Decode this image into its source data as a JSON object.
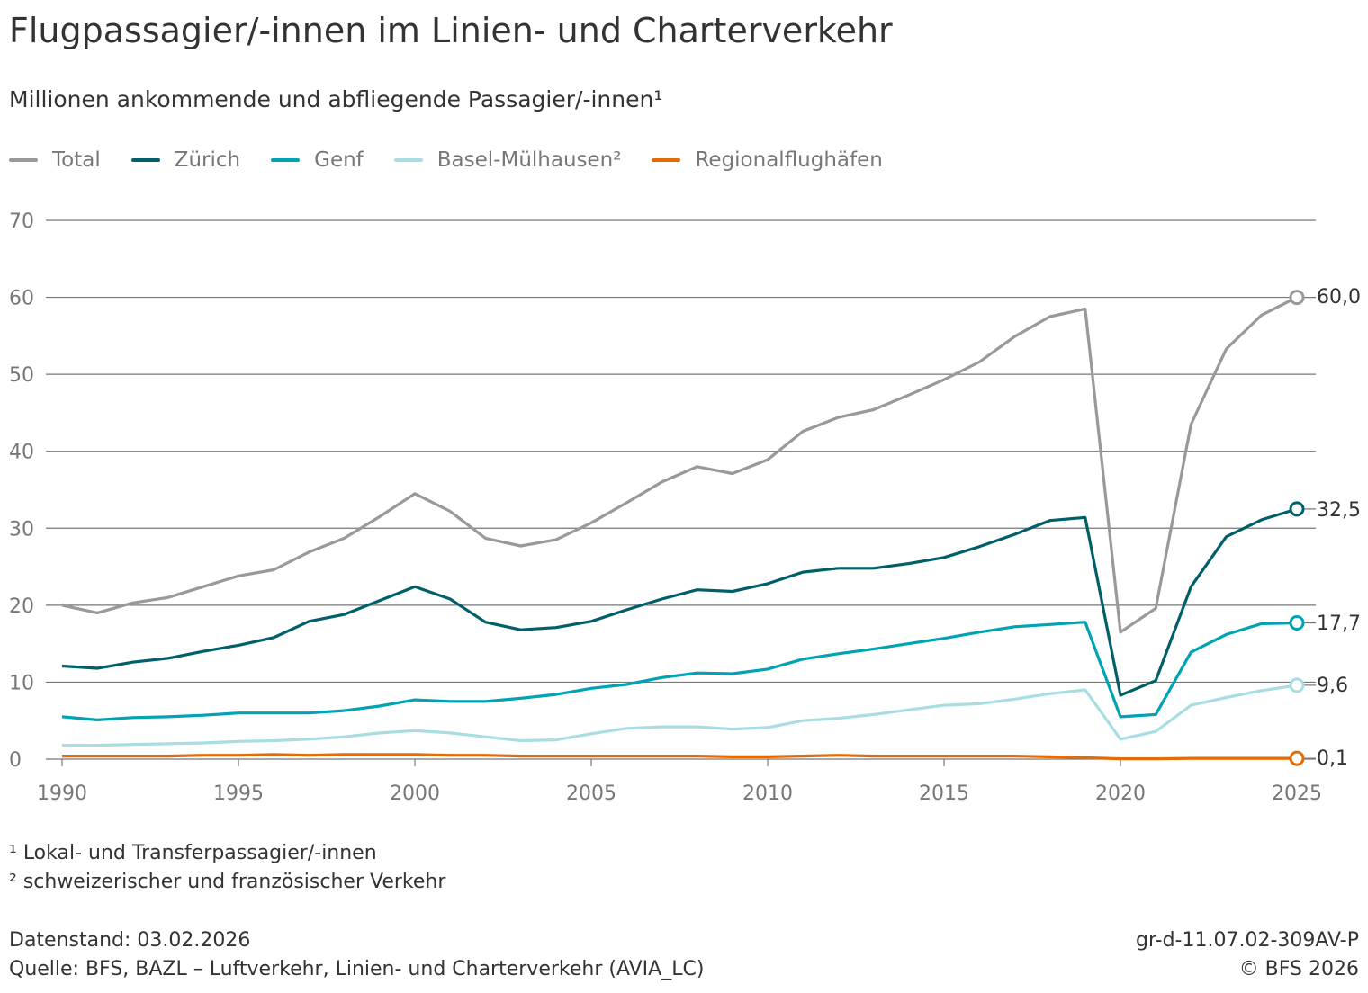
{
  "chart_data": {
    "type": "line",
    "title": "Flugpassagier/-innen im Linien- und Charterverkehr",
    "subtitle": "Millionen ankommende und abfliegende Passagier/-innen¹",
    "ylim": [
      0,
      70
    ],
    "yticks": [
      "0",
      "10",
      "20",
      "30",
      "40",
      "50",
      "60",
      "70"
    ],
    "xticks": [
      "1990",
      "1995",
      "2000",
      "2005",
      "2010",
      "2015",
      "2020",
      "2025"
    ],
    "grid": true,
    "legend_position": "top-left",
    "x": [
      1990,
      1991,
      1992,
      1993,
      1994,
      1995,
      1996,
      1997,
      1998,
      1999,
      2000,
      2001,
      2002,
      2003,
      2004,
      2005,
      2006,
      2007,
      2008,
      2009,
      2010,
      2011,
      2012,
      2013,
      2014,
      2015,
      2016,
      2017,
      2018,
      2019,
      2020,
      2021,
      2022,
      2023,
      2024,
      2025
    ],
    "series": [
      {
        "name": "Total",
        "color": "#999999",
        "end_label": "60,0",
        "values": [
          20.0,
          19.0,
          20.3,
          21.0,
          22.4,
          23.8,
          24.6,
          26.9,
          28.7,
          31.5,
          34.5,
          32.2,
          28.7,
          27.7,
          28.5,
          30.7,
          33.3,
          36.0,
          38.0,
          37.1,
          38.9,
          42.6,
          44.4,
          45.4,
          47.3,
          49.3,
          51.6,
          54.9,
          57.5,
          58.5,
          16.5,
          19.6,
          43.5,
          53.3,
          57.7,
          60.0
        ]
      },
      {
        "name": "Zürich",
        "color": "#005f69",
        "end_label": "32,5",
        "values": [
          12.1,
          11.8,
          12.6,
          13.1,
          14.0,
          14.8,
          15.8,
          17.9,
          18.8,
          20.6,
          22.4,
          20.8,
          17.8,
          16.8,
          17.1,
          17.9,
          19.4,
          20.8,
          22.0,
          21.8,
          22.8,
          24.3,
          24.8,
          24.8,
          25.4,
          26.2,
          27.6,
          29.2,
          31.0,
          31.4,
          8.3,
          10.2,
          22.4,
          28.9,
          31.1,
          32.5
        ]
      },
      {
        "name": "Genf",
        "color": "#00a3b4",
        "end_label": "17,7",
        "values": [
          5.5,
          5.1,
          5.4,
          5.5,
          5.7,
          6.0,
          6.0,
          6.0,
          6.3,
          6.9,
          7.7,
          7.5,
          7.5,
          7.9,
          8.4,
          9.2,
          9.7,
          10.6,
          11.2,
          11.1,
          11.7,
          13.0,
          13.7,
          14.3,
          15.0,
          15.7,
          16.5,
          17.2,
          17.5,
          17.8,
          5.5,
          5.8,
          13.9,
          16.2,
          17.6,
          17.7
        ]
      },
      {
        "name": "Basel-Mülhausen²",
        "color": "#a8dde3",
        "end_label": "9,6",
        "values": [
          1.8,
          1.8,
          1.9,
          2.0,
          2.1,
          2.3,
          2.4,
          2.6,
          2.9,
          3.4,
          3.7,
          3.4,
          2.9,
          2.4,
          2.5,
          3.3,
          4.0,
          4.2,
          4.2,
          3.9,
          4.1,
          5.0,
          5.3,
          5.8,
          6.4,
          7.0,
          7.2,
          7.8,
          8.5,
          9.0,
          2.6,
          3.6,
          7.0,
          8.0,
          8.9,
          9.6
        ]
      },
      {
        "name": "Regionalflughäfen",
        "color": "#e36c0a",
        "end_label": "0,1",
        "values": [
          0.4,
          0.4,
          0.4,
          0.4,
          0.5,
          0.5,
          0.6,
          0.5,
          0.6,
          0.6,
          0.6,
          0.5,
          0.5,
          0.4,
          0.4,
          0.4,
          0.4,
          0.4,
          0.4,
          0.3,
          0.3,
          0.4,
          0.5,
          0.4,
          0.4,
          0.4,
          0.4,
          0.4,
          0.3,
          0.2,
          0.05,
          0.05,
          0.1,
          0.1,
          0.1,
          0.1
        ]
      }
    ]
  },
  "footnotes": [
    "¹ Lokal- und Transferpassagier/-innen",
    "² schweizerischer und französischer Verkehr"
  ],
  "footer": {
    "datenstand": "Datenstand: 03.02.2026",
    "quelle": "Quelle: BFS, BAZL – Luftverkehr, Linien- und Charterverkehr (AVIA_LC)",
    "code": "gr-d-11.07.02-309AV-P",
    "copyright": "© BFS 2026"
  }
}
